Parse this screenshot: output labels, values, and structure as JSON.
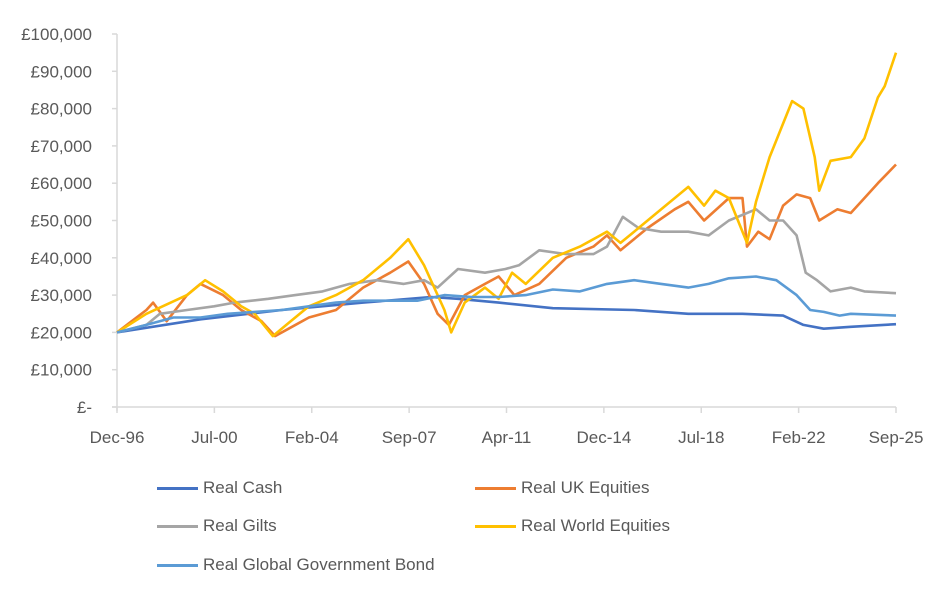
{
  "chart_data": {
    "type": "line",
    "title": "",
    "xlabel": "",
    "ylabel": "",
    "ylim": [
      0,
      100000
    ],
    "yticks": [
      "£-",
      "£10,000",
      "£20,000",
      "£30,000",
      "£40,000",
      "£50,000",
      "£60,000",
      "£70,000",
      "£80,000",
      "£90,000",
      "£100,000"
    ],
    "xticks": [
      "Dec-96",
      "Jul-00",
      "Feb-04",
      "Sep-07",
      "Apr-11",
      "Dec-14",
      "Jul-18",
      "Feb-22",
      "Sep-25"
    ],
    "xlim": [
      "1996-12",
      "2025-09"
    ],
    "grid": false,
    "legend_position": "bottom",
    "series": [
      {
        "name": "Real Cash",
        "color": "#4472C4",
        "points": [
          [
            "1996-12",
            20000
          ],
          [
            "2000-01",
            23500
          ],
          [
            "2003-01",
            26000
          ],
          [
            "2006-01",
            28000
          ],
          [
            "2008-07",
            29500
          ],
          [
            "2009-07",
            29000
          ],
          [
            "2011-01",
            28000
          ],
          [
            "2013-01",
            26500
          ],
          [
            "2016-01",
            26000
          ],
          [
            "2018-01",
            25000
          ],
          [
            "2020-01",
            25000
          ],
          [
            "2021-07",
            24500
          ],
          [
            "2022-04",
            22000
          ],
          [
            "2023-01",
            21000
          ],
          [
            "2024-01",
            21500
          ],
          [
            "2025-09",
            22200
          ]
        ]
      },
      {
        "name": "Real UK Equities",
        "color": "#ED7D31",
        "points": [
          [
            "1996-12",
            20000
          ],
          [
            "1998-01",
            26000
          ],
          [
            "1998-04",
            28000
          ],
          [
            "1998-10",
            23000
          ],
          [
            "1999-07",
            30000
          ],
          [
            "2000-01",
            33000
          ],
          [
            "2000-11",
            30000
          ],
          [
            "2001-07",
            26000
          ],
          [
            "2002-04",
            23000
          ],
          [
            "2002-10",
            19000
          ],
          [
            "2003-04",
            21000
          ],
          [
            "2004-01",
            24000
          ],
          [
            "2005-01",
            26000
          ],
          [
            "2006-01",
            32000
          ],
          [
            "2007-01",
            36000
          ],
          [
            "2007-09",
            39000
          ],
          [
            "2008-04",
            33000
          ],
          [
            "2008-10",
            25000
          ],
          [
            "2009-03",
            22000
          ],
          [
            "2009-10",
            30000
          ],
          [
            "2010-07",
            33000
          ],
          [
            "2011-01",
            35000
          ],
          [
            "2011-08",
            30000
          ],
          [
            "2012-07",
            33000
          ],
          [
            "2013-07",
            40000
          ],
          [
            "2014-07",
            43000
          ],
          [
            "2015-01",
            46000
          ],
          [
            "2015-07",
            42000
          ],
          [
            "2016-07",
            48000
          ],
          [
            "2017-07",
            53000
          ],
          [
            "2018-01",
            55000
          ],
          [
            "2018-08",
            50000
          ],
          [
            "2019-07",
            56000
          ],
          [
            "2020-01",
            56000
          ],
          [
            "2020-03",
            43000
          ],
          [
            "2020-08",
            47000
          ],
          [
            "2021-01",
            45000
          ],
          [
            "2021-07",
            54000
          ],
          [
            "2022-01",
            57000
          ],
          [
            "2022-07",
            56000
          ],
          [
            "2022-11",
            50000
          ],
          [
            "2023-07",
            53000
          ],
          [
            "2024-01",
            52000
          ],
          [
            "2024-07",
            56000
          ],
          [
            "2025-01",
            60000
          ],
          [
            "2025-09",
            65000
          ]
        ]
      },
      {
        "name": "Real Gilts",
        "color": "#A5A5A5",
        "points": [
          [
            "1996-12",
            20000
          ],
          [
            "1998-01",
            22000
          ],
          [
            "1998-07",
            25000
          ],
          [
            "1999-07",
            26000
          ],
          [
            "2000-07",
            27000
          ],
          [
            "2001-04",
            28000
          ],
          [
            "2002-07",
            29000
          ],
          [
            "2003-07",
            30000
          ],
          [
            "2004-07",
            31000
          ],
          [
            "2005-07",
            33000
          ],
          [
            "2006-07",
            34000
          ],
          [
            "2007-07",
            33000
          ],
          [
            "2008-04",
            34000
          ],
          [
            "2008-10",
            32000
          ],
          [
            "2009-07",
            37000
          ],
          [
            "2010-07",
            36000
          ],
          [
            "2011-04",
            37000
          ],
          [
            "2011-10",
            38000
          ],
          [
            "2012-07",
            42000
          ],
          [
            "2013-07",
            41000
          ],
          [
            "2014-07",
            41000
          ],
          [
            "2015-01",
            43000
          ],
          [
            "2015-08",
            51000
          ],
          [
            "2016-03",
            48000
          ],
          [
            "2017-01",
            47000
          ],
          [
            "2018-01",
            47000
          ],
          [
            "2018-10",
            46000
          ],
          [
            "2019-07",
            50000
          ],
          [
            "2020-07",
            53000
          ],
          [
            "2021-01",
            50000
          ],
          [
            "2021-07",
            50000
          ],
          [
            "2022-01",
            46000
          ],
          [
            "2022-05",
            36000
          ],
          [
            "2022-10",
            34000
          ],
          [
            "2023-04",
            31000
          ],
          [
            "2024-01",
            32000
          ],
          [
            "2024-07",
            31000
          ],
          [
            "2025-09",
            30500
          ]
        ]
      },
      {
        "name": "Real World Equities",
        "color": "#FFC000",
        "points": [
          [
            "1996-12",
            20000
          ],
          [
            "1998-01",
            25000
          ],
          [
            "1999-07",
            30000
          ],
          [
            "2000-03",
            34000
          ],
          [
            "2000-11",
            31000
          ],
          [
            "2001-07",
            27000
          ],
          [
            "2002-01",
            25000
          ],
          [
            "2002-09",
            19000
          ],
          [
            "2003-03",
            22000
          ],
          [
            "2004-01",
            27000
          ],
          [
            "2005-01",
            30000
          ],
          [
            "2006-01",
            34000
          ],
          [
            "2007-01",
            40000
          ],
          [
            "2007-09",
            45000
          ],
          [
            "2008-04",
            38000
          ],
          [
            "2009-01",
            26000
          ],
          [
            "2009-04",
            20000
          ],
          [
            "2009-10",
            28000
          ],
          [
            "2010-07",
            32000
          ],
          [
            "2011-01",
            29000
          ],
          [
            "2011-07",
            36000
          ],
          [
            "2012-01",
            33000
          ],
          [
            "2013-01",
            40000
          ],
          [
            "2014-01",
            43000
          ],
          [
            "2015-01",
            47000
          ],
          [
            "2015-07",
            44000
          ],
          [
            "2016-01",
            47000
          ],
          [
            "2017-01",
            53000
          ],
          [
            "2018-01",
            59000
          ],
          [
            "2018-08",
            54000
          ],
          [
            "2019-01",
            58000
          ],
          [
            "2019-07",
            56000
          ],
          [
            "2020-03",
            44000
          ],
          [
            "2020-07",
            55000
          ],
          [
            "2021-01",
            67000
          ],
          [
            "2021-07",
            76000
          ],
          [
            "2021-11",
            82000
          ],
          [
            "2022-04",
            80000
          ],
          [
            "2022-09",
            67000
          ],
          [
            "2022-11",
            58000
          ],
          [
            "2023-04",
            66000
          ],
          [
            "2024-01",
            67000
          ],
          [
            "2024-07",
            72000
          ],
          [
            "2025-01",
            83000
          ],
          [
            "2025-04",
            86000
          ],
          [
            "2025-09",
            95000
          ]
        ]
      },
      {
        "name": "Real Global Government Bond",
        "color": "#5B9BD5",
        "points": [
          [
            "1996-12",
            20000
          ],
          [
            "1998-01",
            22000
          ],
          [
            "1999-01",
            24000
          ],
          [
            "2000-01",
            24000
          ],
          [
            "2001-01",
            25000
          ],
          [
            "2002-01",
            25500
          ],
          [
            "2003-01",
            26000
          ],
          [
            "2004-01",
            27000
          ],
          [
            "2005-01",
            28000
          ],
          [
            "2006-01",
            28500
          ],
          [
            "2007-01",
            28500
          ],
          [
            "2008-01",
            28500
          ],
          [
            "2009-01",
            30000
          ],
          [
            "2010-01",
            29500
          ],
          [
            "2011-01",
            29500
          ],
          [
            "2012-01",
            30000
          ],
          [
            "2013-01",
            31500
          ],
          [
            "2014-01",
            31000
          ],
          [
            "2015-01",
            33000
          ],
          [
            "2016-01",
            34000
          ],
          [
            "2017-01",
            33000
          ],
          [
            "2018-01",
            32000
          ],
          [
            "2018-10",
            33000
          ],
          [
            "2019-07",
            34500
          ],
          [
            "2020-07",
            35000
          ],
          [
            "2021-04",
            34000
          ],
          [
            "2022-01",
            30000
          ],
          [
            "2022-07",
            26000
          ],
          [
            "2023-01",
            25500
          ],
          [
            "2023-08",
            24500
          ],
          [
            "2024-01",
            25000
          ],
          [
            "2025-09",
            24500
          ]
        ]
      }
    ]
  }
}
